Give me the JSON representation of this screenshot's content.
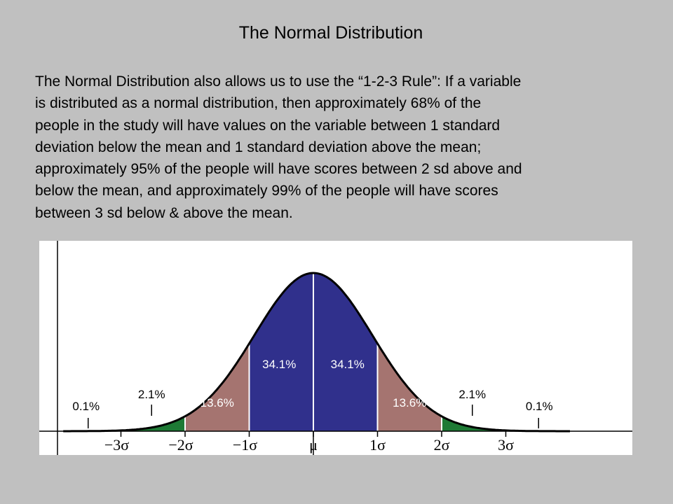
{
  "slide": {
    "title": "The Normal Distribution",
    "body": "The Normal Distribution also allows us to use the “1-2-3 Rule”: If a variable\nis distributed as a normal distribution, then approximately 68% of the\npeople in the study will have values on the variable between 1 standard\ndeviation below the mean and 1 standard deviation above the mean;\napproximately 95% of the people will have scores between 2 sd above and\nbelow the mean, and approximately 99% of the people will have scores\nbetween 3 sd below & above the mean."
  },
  "chart_data": {
    "type": "area",
    "title": "",
    "xlabel": "",
    "ylabel": "",
    "x_ticks": [
      "−3σ",
      "−2σ",
      "−1σ",
      "μ",
      "1σ",
      "2σ",
      "3σ"
    ],
    "x_range_sd": [
      -3.9,
      4.0
    ],
    "regions": [
      {
        "from_sd": -3,
        "to_sd": -2,
        "percent": "2.1%",
        "color": "#1e7a35"
      },
      {
        "from_sd": -2,
        "to_sd": -1,
        "percent": "13.6%",
        "color": "#a57470"
      },
      {
        "from_sd": -1,
        "to_sd": 0,
        "percent": "34.1%",
        "color": "#30308c"
      },
      {
        "from_sd": 0,
        "to_sd": 1,
        "percent": "34.1%",
        "color": "#30308c"
      },
      {
        "from_sd": 1,
        "to_sd": 2,
        "percent": "13.6%",
        "color": "#a57470"
      },
      {
        "from_sd": 2,
        "to_sd": 3,
        "percent": "2.1%",
        "color": "#1e7a35"
      }
    ],
    "tail_labels": [
      {
        "at_sd": -3.5,
        "percent": "0.1%"
      },
      {
        "at_sd": 3.5,
        "percent": "0.1%"
      }
    ]
  }
}
